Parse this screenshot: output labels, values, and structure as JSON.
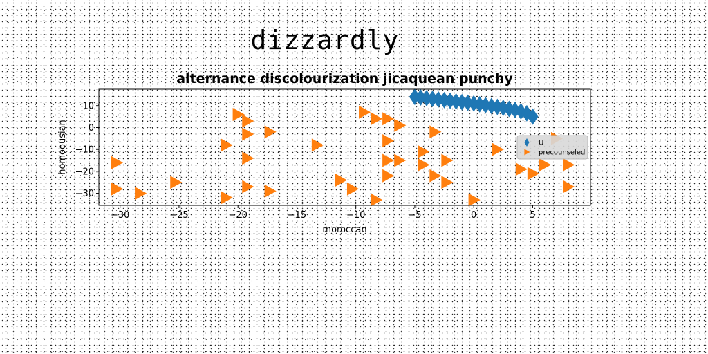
{
  "suptitle": "dizzardly",
  "chart_data": {
    "type": "scatter",
    "title": "alternance discolourization jicaquean punchy",
    "xlabel": "moroccan",
    "ylabel": "homoousian",
    "xlim": [
      -31.8,
      9.9
    ],
    "ylim": [
      -35.5,
      17.5
    ],
    "xticks": [
      -30,
      -25,
      -20,
      -15,
      -10,
      -5,
      0,
      5
    ],
    "yticks": [
      10,
      0,
      -10,
      -20,
      -30
    ],
    "grid": false,
    "legend_position": "right",
    "series": [
      {
        "name": "U",
        "marker": "thin-diamond",
        "color": "#1f77b4",
        "points": [
          [
            -5.0,
            14.0
          ],
          [
            -4.5,
            13.7
          ],
          [
            -4.0,
            13.4
          ],
          [
            -3.5,
            13.1
          ],
          [
            -3.0,
            12.8
          ],
          [
            -2.5,
            12.5
          ],
          [
            -2.0,
            12.2
          ],
          [
            -1.5,
            11.9
          ],
          [
            -1.0,
            11.6
          ],
          [
            -0.5,
            11.3
          ],
          [
            0.0,
            11.0
          ],
          [
            0.5,
            10.6
          ],
          [
            1.0,
            10.2
          ],
          [
            1.5,
            9.8
          ],
          [
            2.0,
            9.4
          ],
          [
            2.5,
            9.0
          ],
          [
            3.0,
            8.5
          ],
          [
            3.5,
            8.0
          ],
          [
            4.0,
            7.4
          ],
          [
            4.5,
            6.5
          ],
          [
            5.0,
            5.0
          ]
        ]
      },
      {
        "name": "precounseled",
        "marker": "triangle-right",
        "color": "#ff7f0e",
        "points": [
          [
            -20.0,
            6.0
          ],
          [
            -19.2,
            3.0
          ],
          [
            -19.2,
            -3.0
          ],
          [
            -17.3,
            -2.0
          ],
          [
            -21.0,
            -8.0
          ],
          [
            -19.2,
            -14.0
          ],
          [
            -30.3,
            -16.0
          ],
          [
            -30.3,
            -28.0
          ],
          [
            -28.3,
            -30.0
          ],
          [
            -25.3,
            -25.0
          ],
          [
            -21.0,
            -32.0
          ],
          [
            -19.2,
            -27.0
          ],
          [
            -17.3,
            -29.0
          ],
          [
            -13.3,
            -8.0
          ],
          [
            -11.3,
            -24.0
          ],
          [
            -10.3,
            -28.0
          ],
          [
            -9.3,
            7.0
          ],
          [
            -8.3,
            4.0
          ],
          [
            -7.3,
            4.0
          ],
          [
            -6.3,
            1.0
          ],
          [
            -7.3,
            -6.0
          ],
          [
            -7.3,
            -15.0
          ],
          [
            -6.3,
            -15.0
          ],
          [
            -7.3,
            -22.0
          ],
          [
            -8.3,
            -33.0
          ],
          [
            -4.3,
            -11.0
          ],
          [
            -4.3,
            -17.0
          ],
          [
            -3.3,
            -2.0
          ],
          [
            -3.3,
            -22.0
          ],
          [
            -2.3,
            -15.0
          ],
          [
            -2.3,
            -25.0
          ],
          [
            0.0,
            -33.0
          ],
          [
            2.0,
            -10.0
          ],
          [
            4.0,
            -19.0
          ],
          [
            5.0,
            -21.0
          ],
          [
            6.0,
            -17.0
          ],
          [
            7.0,
            -5.0
          ],
          [
            8.0,
            -17.0
          ],
          [
            8.0,
            -27.0
          ]
        ]
      }
    ]
  }
}
